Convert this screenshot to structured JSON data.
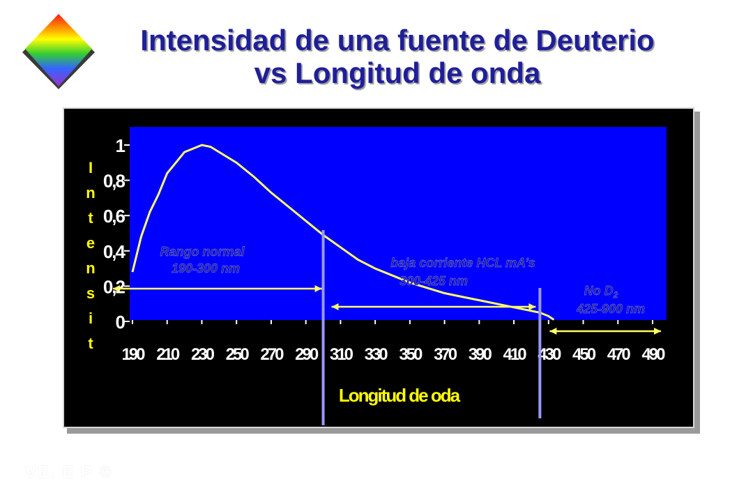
{
  "title": {
    "line1": "Intensidad de una fuente de Deuterio",
    "line2": "vs Longitud de onda"
  },
  "logo": {
    "icon": "rainbow-diamond-icon"
  },
  "chart_data": {
    "type": "line",
    "xlabel": "Longitud de oda",
    "ylabel": "Intensit",
    "categories": [
      "190",
      "210",
      "230",
      "250",
      "270",
      "290",
      "310",
      "330",
      "350",
      "370",
      "390",
      "410",
      "430",
      "450",
      "470",
      "490"
    ],
    "ytick_labels": [
      "0",
      "0,2",
      "0,4",
      "0,6",
      "0,8",
      "1"
    ],
    "ylim": [
      0,
      1.05
    ],
    "grid": false,
    "series": [
      {
        "x": [
          190,
          195,
          200,
          205,
          210,
          215,
          220,
          225,
          230,
          235,
          240,
          250,
          260,
          270,
          280,
          290,
          300,
          310,
          320,
          330,
          340,
          350,
          360,
          370,
          380,
          390,
          400,
          410,
          420,
          425,
          430,
          433
        ],
        "values": [
          0.28,
          0.48,
          0.62,
          0.72,
          0.84,
          0.9,
          0.96,
          0.98,
          1.0,
          0.99,
          0.96,
          0.9,
          0.82,
          0.73,
          0.65,
          0.57,
          0.49,
          0.42,
          0.35,
          0.3,
          0.26,
          0.22,
          0.19,
          0.16,
          0.14,
          0.12,
          0.1,
          0.08,
          0.06,
          0.05,
          0.03,
          0.01
        ],
        "color": "#ffff66"
      }
    ],
    "annotations": {
      "normal_range": {
        "line1": "Rango normal",
        "line2": "190-300 nm"
      },
      "low_current": {
        "line1": "baja corriente  HCL mA’s",
        "line2": "300-425 nm"
      },
      "no_d2": {
        "text": "No D",
        "subscript": "2",
        "line2": "425-900 nm"
      }
    },
    "colors": {
      "plot_background": "#0000ff",
      "frame_background": "#000000",
      "curve": "#ffff66",
      "arrows": "#ffff66",
      "dividers": "#9999ff",
      "labels": "#ffff00",
      "annotation_text": "#1d1d9a",
      "ticks_text": "#ffffff"
    }
  },
  "watermark": "VE. E P ®"
}
